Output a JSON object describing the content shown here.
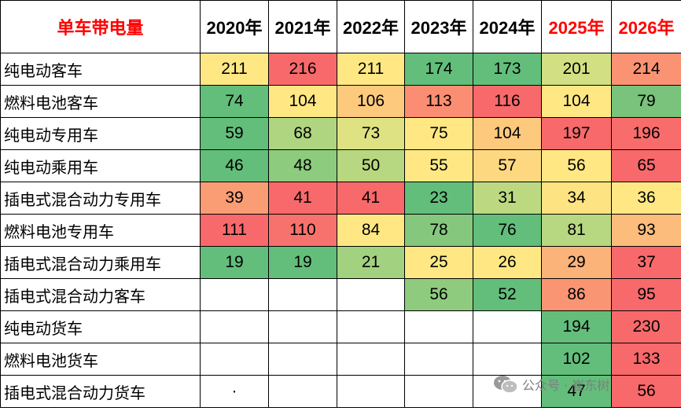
{
  "table": {
    "corner_label": "单车带电量",
    "years": [
      {
        "label": "2020年",
        "highlight": false
      },
      {
        "label": "2021年",
        "highlight": false
      },
      {
        "label": "2022年",
        "highlight": false
      },
      {
        "label": "2023年",
        "highlight": false
      },
      {
        "label": "2024年",
        "highlight": false
      },
      {
        "label": "2025年",
        "highlight": true
      },
      {
        "label": "2026年",
        "highlight": true
      }
    ],
    "rows": [
      {
        "label": "纯电动客车",
        "cells": [
          {
            "v": "211",
            "c": "#ffe884"
          },
          {
            "v": "216",
            "c": "#f8696b"
          },
          {
            "v": "211",
            "c": "#ffe884"
          },
          {
            "v": "174",
            "c": "#63be7b"
          },
          {
            "v": "173",
            "c": "#63be7b"
          },
          {
            "v": "201",
            "c": "#d2df82"
          },
          {
            "v": "214",
            "c": "#fa9373"
          }
        ]
      },
      {
        "label": "燃料电池客车",
        "cells": [
          {
            "v": "74",
            "c": "#63be7b"
          },
          {
            "v": "104",
            "c": "#ffe884"
          },
          {
            "v": "106",
            "c": "#fdc97d"
          },
          {
            "v": "113",
            "c": "#fb8e72"
          },
          {
            "v": "116",
            "c": "#f8696b"
          },
          {
            "v": "104",
            "c": "#ffe884"
          },
          {
            "v": "79",
            "c": "#79c37c"
          }
        ]
      },
      {
        "label": "纯电动专用车",
        "cells": [
          {
            "v": "59",
            "c": "#63be7b"
          },
          {
            "v": "68",
            "c": "#afd580"
          },
          {
            "v": "73",
            "c": "#dfe283"
          },
          {
            "v": "75",
            "c": "#ffe884"
          },
          {
            "v": "104",
            "c": "#fdc97d"
          },
          {
            "v": "197",
            "c": "#f8696b"
          },
          {
            "v": "196",
            "c": "#f86d6c"
          }
        ]
      },
      {
        "label": "纯电动乘用车",
        "cells": [
          {
            "v": "46",
            "c": "#63be7b"
          },
          {
            "v": "48",
            "c": "#8dcb7e"
          },
          {
            "v": "50",
            "c": "#b7d780"
          },
          {
            "v": "55",
            "c": "#ffe884"
          },
          {
            "v": "57",
            "c": "#fed880"
          },
          {
            "v": "56",
            "c": "#ffe884"
          },
          {
            "v": "65",
            "c": "#f8696b"
          }
        ]
      },
      {
        "label": "插电式混合动力专用车",
        "cells": [
          {
            "v": "39",
            "c": "#fa9d75"
          },
          {
            "v": "41",
            "c": "#f8696b"
          },
          {
            "v": "41",
            "c": "#f8696b"
          },
          {
            "v": "23",
            "c": "#63be7b"
          },
          {
            "v": "31",
            "c": "#bcd981"
          },
          {
            "v": "34",
            "c": "#fee382"
          },
          {
            "v": "36",
            "c": "#ffe884"
          }
        ]
      },
      {
        "label": "燃料电池专用车",
        "cells": [
          {
            "v": "111",
            "c": "#f8696b"
          },
          {
            "v": "110",
            "c": "#f8726d"
          },
          {
            "v": "84",
            "c": "#ffe884"
          },
          {
            "v": "78",
            "c": "#85c87d"
          },
          {
            "v": "76",
            "c": "#63be7b"
          },
          {
            "v": "81",
            "c": "#b7d780"
          },
          {
            "v": "93",
            "c": "#fcbc7b"
          }
        ]
      },
      {
        "label": "插电式混合动力乘用车",
        "cells": [
          {
            "v": "19",
            "c": "#63be7b"
          },
          {
            "v": "19",
            "c": "#63be7b"
          },
          {
            "v": "21",
            "c": "#a2d17f"
          },
          {
            "v": "25",
            "c": "#ffe884"
          },
          {
            "v": "26",
            "c": "#ffe884"
          },
          {
            "v": "29",
            "c": "#fcb379"
          },
          {
            "v": "37",
            "c": "#f8696b"
          }
        ]
      },
      {
        "label": "插电式混合动力客车",
        "cells": [
          {
            "v": "",
            "c": "#ffffff"
          },
          {
            "v": "",
            "c": "#ffffff"
          },
          {
            "v": "",
            "c": "#ffffff"
          },
          {
            "v": "56",
            "c": "#8ecb7e"
          },
          {
            "v": "52",
            "c": "#63be7b"
          },
          {
            "v": "86",
            "c": "#fa9574"
          },
          {
            "v": "95",
            "c": "#f8696b"
          }
        ]
      },
      {
        "label": "纯电动货车",
        "cells": [
          {
            "v": "",
            "c": "#ffffff"
          },
          {
            "v": "",
            "c": "#ffffff"
          },
          {
            "v": "",
            "c": "#ffffff"
          },
          {
            "v": "",
            "c": "#ffffff"
          },
          {
            "v": "",
            "c": "#ffffff"
          },
          {
            "v": "194",
            "c": "#63be7b"
          },
          {
            "v": "230",
            "c": "#f8696b"
          }
        ]
      },
      {
        "label": "燃料电池货车",
        "cells": [
          {
            "v": "",
            "c": "#ffffff"
          },
          {
            "v": "",
            "c": "#ffffff"
          },
          {
            "v": "",
            "c": "#ffffff"
          },
          {
            "v": "",
            "c": "#ffffff"
          },
          {
            "v": "",
            "c": "#ffffff"
          },
          {
            "v": "102",
            "c": "#63be7b"
          },
          {
            "v": "133",
            "c": "#f8696b"
          }
        ]
      },
      {
        "label": "插电式混合动力货车",
        "cells": [
          {
            "v": "·",
            "c": "#ffffff"
          },
          {
            "v": "",
            "c": "#ffffff"
          },
          {
            "v": "",
            "c": "#ffffff"
          },
          {
            "v": "",
            "c": "#ffffff"
          },
          {
            "v": "",
            "c": "#ffffff"
          },
          {
            "v": "47",
            "c": "#63be7b"
          },
          {
            "v": "56",
            "c": "#f8696b"
          }
        ]
      }
    ]
  },
  "watermark": {
    "icon": "wechat-icon",
    "text": "公众号 · 崔东树"
  }
}
